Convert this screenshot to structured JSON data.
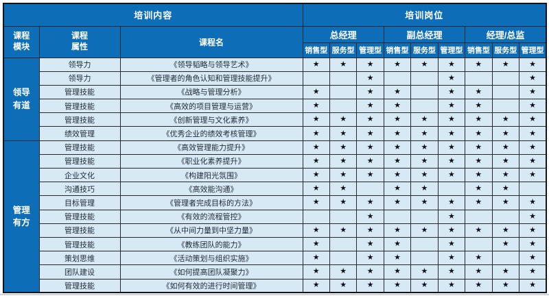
{
  "header": {
    "training_content": "培训内容",
    "training_positions": "培训岗位",
    "col_module": "课程模块",
    "col_attribute": "课程属性",
    "col_course": "课程名",
    "position_groups": [
      "总经理",
      "副总经理",
      "经理/总监"
    ],
    "position_types": [
      "销售型",
      "服务型",
      "管理型"
    ]
  },
  "star_glyph": "★",
  "colors": {
    "header_blue": "#0d6db6",
    "cell_light_blue": "#d8e9f6",
    "border_dark": "#24282c",
    "star_dark": "#0c1018"
  },
  "modules": [
    {
      "name": "领导有道",
      "rowspan": 6
    },
    {
      "name": "管理有方",
      "rowspan": 11
    }
  ],
  "rows": [
    {
      "attribute": "领导力",
      "course": "《领导韬略与领导艺术》",
      "stars": [
        1,
        1,
        1,
        1,
        1,
        1,
        1,
        1,
        1
      ]
    },
    {
      "attribute": "领导力",
      "course": "《管理者的角色认知和管理技能提升》",
      "stars": [
        0,
        0,
        1,
        0,
        0,
        1,
        0,
        0,
        1
      ]
    },
    {
      "attribute": "管理技能",
      "course": "《战略与管理分析》",
      "stars": [
        1,
        0,
        1,
        1,
        0,
        1,
        1,
        0,
        1
      ]
    },
    {
      "attribute": "管理技能",
      "course": "《高效的项目管理与运营》",
      "stars": [
        1,
        0,
        1,
        1,
        0,
        1,
        1,
        0,
        1
      ]
    },
    {
      "attribute": "管理技能",
      "course": "《创新管理与文化素养》",
      "stars": [
        1,
        1,
        1,
        1,
        1,
        1,
        1,
        1,
        1
      ]
    },
    {
      "attribute": "绩效管理",
      "course": "《优秀企业的绩效考核管理》",
      "stars": [
        1,
        1,
        1,
        1,
        1,
        1,
        1,
        1,
        1
      ]
    },
    {
      "attribute": "管理技能",
      "course": "《高效管理能力提升》",
      "stars": [
        1,
        1,
        1,
        1,
        1,
        1,
        1,
        1,
        1
      ]
    },
    {
      "attribute": "管理技能",
      "course": "《职业化素养提升》",
      "stars": [
        1,
        1,
        1,
        1,
        1,
        1,
        1,
        1,
        1
      ]
    },
    {
      "attribute": "企业文化",
      "course": "《构建阳光氛围》",
      "stars": [
        1,
        1,
        1,
        1,
        1,
        1,
        1,
        1,
        1
      ]
    },
    {
      "attribute": "沟通技巧",
      "course": "《高效能沟通》",
      "stars": [
        1,
        1,
        0,
        1,
        1,
        0,
        1,
        1,
        0
      ]
    },
    {
      "attribute": "目标管理",
      "course": "《管理者完成目标的方法》",
      "stars": [
        1,
        1,
        1,
        1,
        1,
        1,
        1,
        1,
        1
      ]
    },
    {
      "attribute": "管理技能",
      "course": "《有效的流程管控》",
      "stars": [
        0,
        0,
        1,
        0,
        0,
        1,
        0,
        0,
        1
      ]
    },
    {
      "attribute": "管理技能",
      "course": "《从中间力量到中坚力量》",
      "stars": [
        1,
        1,
        1,
        1,
        1,
        1,
        1,
        1,
        1
      ]
    },
    {
      "attribute": "管理技能",
      "course": "《教练团队的能力》",
      "stars": [
        1,
        0,
        1,
        1,
        0,
        1,
        0,
        1,
        1
      ]
    },
    {
      "attribute": "策划思维",
      "course": "《活动策划与组织实施》",
      "stars": [
        1,
        0,
        1,
        1,
        0,
        1,
        1,
        0,
        1
      ]
    },
    {
      "attribute": "团队建设",
      "course": "《如何提高团队凝聚力》",
      "stars": [
        1,
        1,
        1,
        1,
        1,
        1,
        1,
        1,
        1
      ]
    },
    {
      "attribute": "管理技能",
      "course": "《如何有效的进行时间管理》",
      "stars": [
        1,
        1,
        1,
        1,
        1,
        1,
        1,
        1,
        1
      ]
    }
  ]
}
